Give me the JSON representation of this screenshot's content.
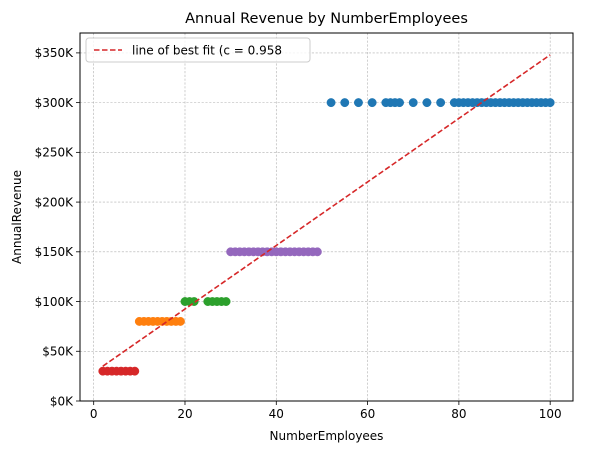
{
  "chart_data": {
    "type": "scatter",
    "title": "Annual Revenue by NumberEmployees",
    "xlabel": "NumberEmployees",
    "ylabel": "AnnualRevenue",
    "xlim": [
      -3,
      105
    ],
    "ylim": [
      0,
      370000
    ],
    "x_ticks": [
      0,
      20,
      40,
      60,
      80,
      100
    ],
    "x_tick_labels": [
      "0",
      "20",
      "40",
      "60",
      "80",
      "100"
    ],
    "y_ticks": [
      0,
      50000,
      100000,
      150000,
      200000,
      250000,
      300000,
      350000
    ],
    "y_tick_labels": [
      "$0K",
      "$50K",
      "$100K",
      "$150K",
      "$200K",
      "$250K",
      "$300K",
      "$350K"
    ],
    "grid": true,
    "legend_position": "top-left",
    "legend": [
      "line of best fit (c = 0.958"
    ],
    "series": [
      {
        "color": "#d62728",
        "points": [
          [
            2,
            30000
          ],
          [
            3,
            30000
          ],
          [
            4,
            30000
          ],
          [
            5,
            30000
          ],
          [
            6,
            30000
          ],
          [
            7,
            30000
          ],
          [
            8,
            30000
          ],
          [
            9,
            30000
          ]
        ]
      },
      {
        "color": "#ff7f0e",
        "points": [
          [
            10,
            80000
          ],
          [
            11,
            80000
          ],
          [
            12,
            80000
          ],
          [
            13,
            80000
          ],
          [
            14,
            80000
          ],
          [
            15,
            80000
          ],
          [
            16,
            80000
          ],
          [
            17,
            80000
          ],
          [
            18,
            80000
          ],
          [
            19,
            80000
          ]
        ]
      },
      {
        "color": "#2ca02c",
        "points": [
          [
            20,
            100000
          ],
          [
            21,
            100000
          ],
          [
            22,
            100000
          ],
          [
            25,
            100000
          ],
          [
            26,
            100000
          ],
          [
            27,
            100000
          ],
          [
            28,
            100000
          ],
          [
            29,
            100000
          ]
        ]
      },
      {
        "color": "#9467bd",
        "points": [
          [
            30,
            150000
          ],
          [
            31,
            150000
          ],
          [
            32,
            150000
          ],
          [
            33,
            150000
          ],
          [
            34,
            150000
          ],
          [
            35,
            150000
          ],
          [
            36,
            150000
          ],
          [
            37,
            150000
          ],
          [
            38,
            150000
          ],
          [
            39,
            150000
          ],
          [
            40,
            150000
          ],
          [
            41,
            150000
          ],
          [
            42,
            150000
          ],
          [
            43,
            150000
          ],
          [
            44,
            150000
          ],
          [
            45,
            150000
          ],
          [
            46,
            150000
          ],
          [
            47,
            150000
          ],
          [
            48,
            150000
          ],
          [
            49,
            150000
          ]
        ]
      },
      {
        "color": "#1f77b4",
        "points": [
          [
            52,
            300000
          ],
          [
            55,
            300000
          ],
          [
            58,
            300000
          ],
          [
            61,
            300000
          ],
          [
            64,
            300000
          ],
          [
            65,
            300000
          ],
          [
            66,
            300000
          ],
          [
            67,
            300000
          ],
          [
            70,
            300000
          ],
          [
            73,
            300000
          ],
          [
            76,
            300000
          ],
          [
            79,
            300000
          ],
          [
            80,
            300000
          ],
          [
            81,
            300000
          ],
          [
            82,
            300000
          ],
          [
            83,
            300000
          ],
          [
            84,
            300000
          ],
          [
            85,
            300000
          ],
          [
            86,
            300000
          ],
          [
            87,
            300000
          ],
          [
            88,
            300000
          ],
          [
            89,
            300000
          ],
          [
            90,
            300000
          ],
          [
            91,
            300000
          ],
          [
            92,
            300000
          ],
          [
            93,
            300000
          ],
          [
            94,
            300000
          ],
          [
            95,
            300000
          ],
          [
            96,
            300000
          ],
          [
            97,
            300000
          ],
          [
            98,
            300000
          ],
          [
            99,
            300000
          ],
          [
            100,
            300000
          ]
        ]
      }
    ],
    "best_fit": {
      "label": "line of best fit (c = 0.958",
      "color": "#d62728",
      "x": [
        2,
        100
      ],
      "y": [
        35000,
        348000
      ]
    }
  }
}
